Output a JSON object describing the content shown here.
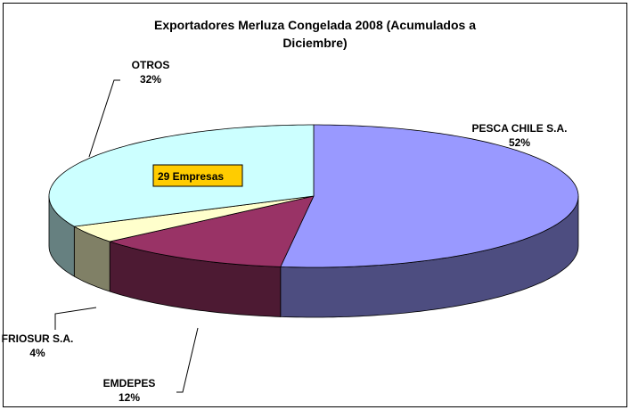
{
  "chart_data": {
    "type": "pie3d",
    "title": "Exportadores Merluza Congelada 2008 (Acumulados a Diciembre)",
    "categories": [
      "PESCA CHILE S.A.",
      "EMDEPES",
      "FRIOSUR S.A.",
      "OTROS"
    ],
    "values": [
      52,
      12,
      4,
      32
    ],
    "value_labels": [
      "52%",
      "12%",
      "4%",
      "32%"
    ],
    "colors": [
      "#9999ff",
      "#993366",
      "#ffffcc",
      "#ccffff"
    ],
    "side_colors": [
      "#4d4d80",
      "#4d1a33",
      "#808066",
      "#668080"
    ],
    "annotation": "29 Empresas"
  }
}
